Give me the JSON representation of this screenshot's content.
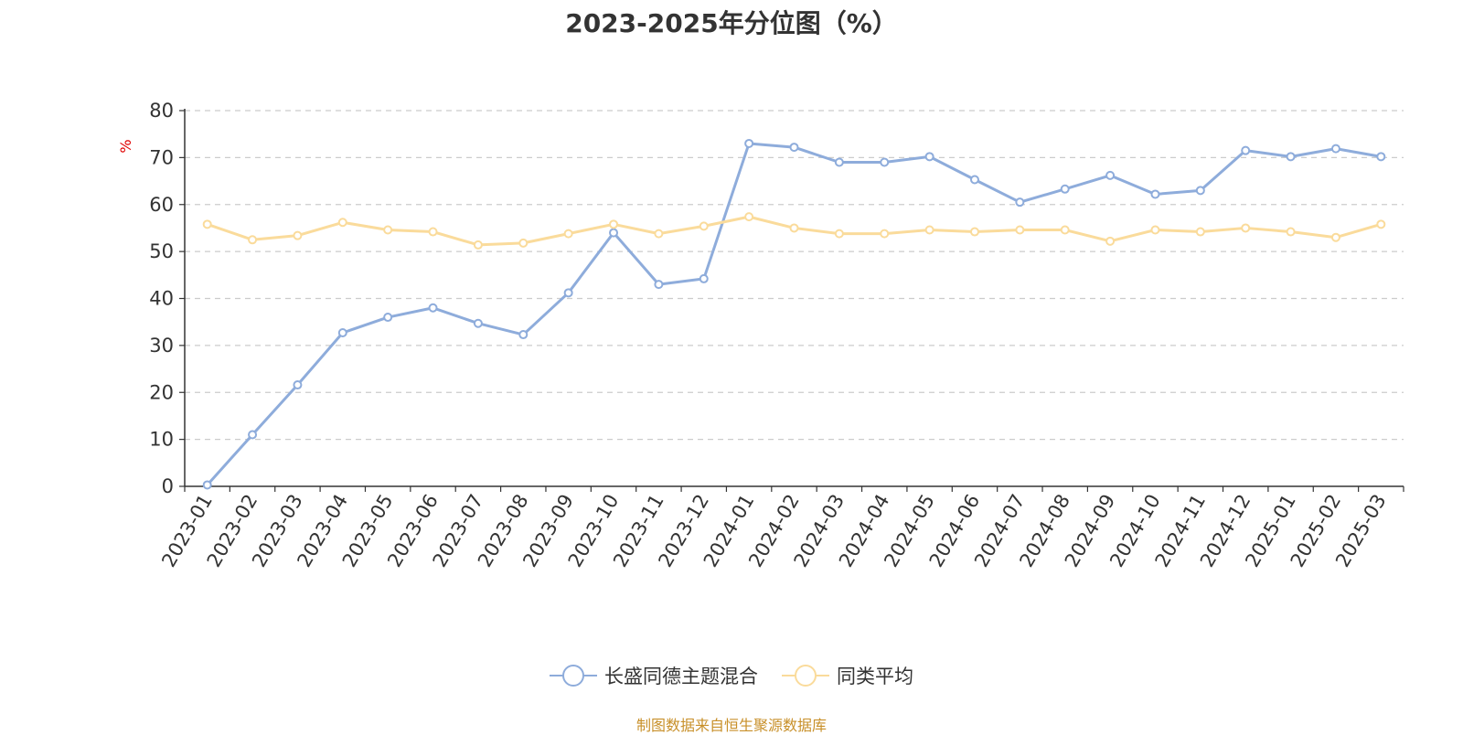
{
  "chart_data": {
    "type": "line",
    "title": "2023-2025年分位图（%）",
    "ylabel": "%",
    "xlabel": "",
    "ylim": [
      0,
      80
    ],
    "yticks": [
      0,
      10,
      20,
      30,
      40,
      50,
      60,
      70,
      80
    ],
    "grid": "horizontal dashed",
    "legend_position": "bottom",
    "categories": [
      "2023-01",
      "2023-02",
      "2023-03",
      "2023-04",
      "2023-05",
      "2023-06",
      "2023-07",
      "2023-08",
      "2023-09",
      "2023-10",
      "2023-11",
      "2023-12",
      "2024-01",
      "2024-02",
      "2024-03",
      "2024-04",
      "2024-05",
      "2024-06",
      "2024-07",
      "2024-08",
      "2024-09",
      "2024-10",
      "2024-11",
      "2024-12",
      "2025-01",
      "2025-02",
      "2025-03"
    ],
    "series": [
      {
        "name": "长盛同德主题混合",
        "color": "#8eacdb",
        "values": [
          0.3,
          11,
          21.6,
          32.7,
          36,
          38,
          34.7,
          32.3,
          41.2,
          54,
          43,
          44.2,
          73,
          72.2,
          69,
          69,
          70.2,
          65.3,
          60.5,
          63.3,
          66.2,
          62.2,
          63,
          71.5,
          70.2,
          71.9,
          70.2
        ]
      },
      {
        "name": "同类平均",
        "color": "#fadb9b",
        "values": [
          55.8,
          52.5,
          53.4,
          56.2,
          54.6,
          54.2,
          51.4,
          51.8,
          53.8,
          55.8,
          53.8,
          55.4,
          57.4,
          55,
          53.8,
          53.8,
          54.6,
          54.2,
          54.6,
          54.6,
          52.2,
          54.6,
          54.2,
          55,
          54.2,
          53,
          55.8
        ]
      }
    ]
  },
  "source_note": "制图数据来自恒生聚源数据库"
}
